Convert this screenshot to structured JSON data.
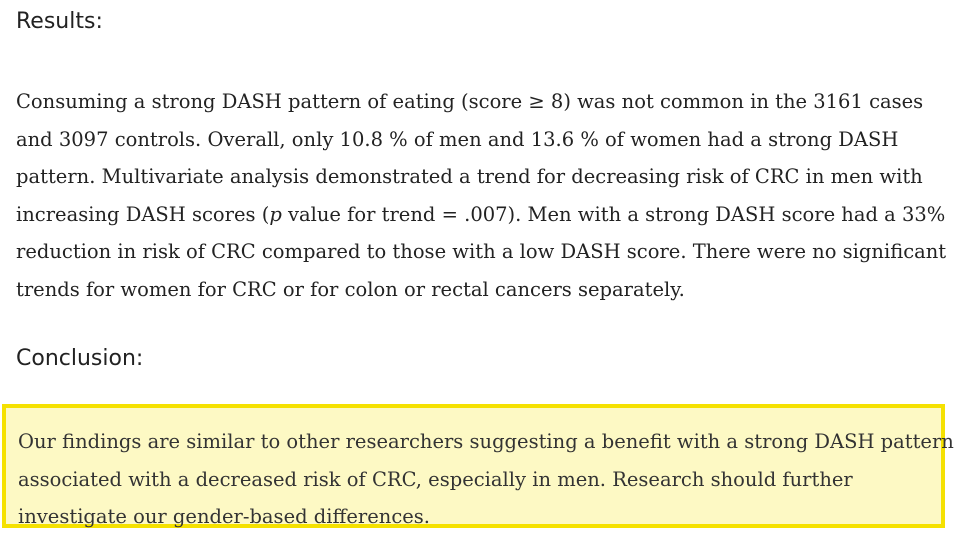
{
  "results": {
    "heading": "Results:",
    "lines": [
      "Consuming a strong DASH pattern of eating (score ≥ 8) was not common in the 3161 cases",
      "and 3097 controls. Overall, only 10.8 % of men and 13.6 % of women had a strong DASH",
      "pattern. Multivariate analysis demonstrated a trend for decreasing risk of CRC in men with",
      "increasing DASH scores (",
      "p",
      " value for trend = .007). Men with a strong DASH score had a 33%",
      "reduction in risk of CRC compared to those with a low DASH score. There were no significant",
      "trends for women for CRC or for colon or rectal cancers separately."
    ]
  },
  "conclusion": {
    "heading": "Conclusion:",
    "lines": [
      "Our findings are similar to other researchers suggesting a benefit with a strong DASH pattern",
      "associated with a decreased risk of CRC, especially in men. Research should further",
      "investigate our gender-based differences."
    ]
  },
  "colors": {
    "highlight_border": "#f5e100",
    "highlight_fill": "#fdf9c4",
    "text": "#222222"
  }
}
